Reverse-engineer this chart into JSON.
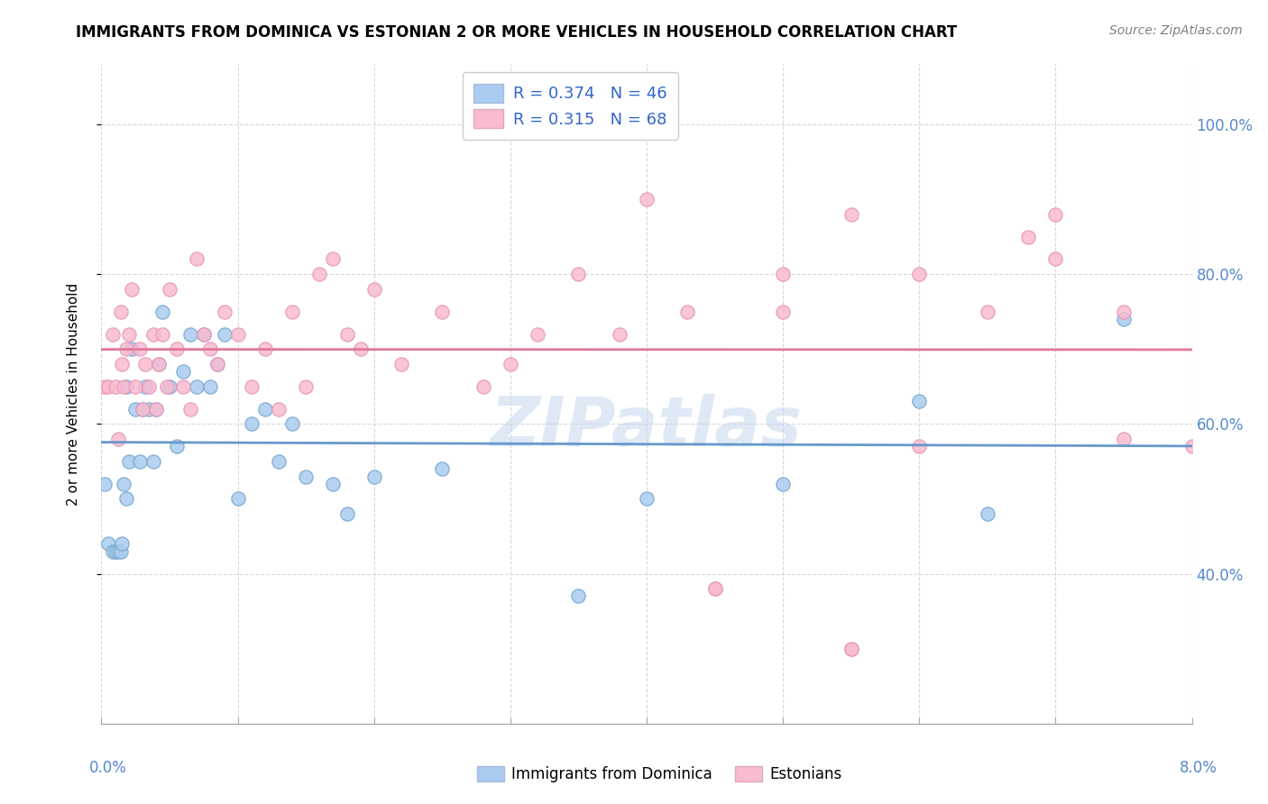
{
  "title": "IMMIGRANTS FROM DOMINICA VS ESTONIAN 2 OR MORE VEHICLES IN HOUSEHOLD CORRELATION CHART",
  "source": "Source: ZipAtlas.com",
  "ylabel": "2 or more Vehicles in Household",
  "xlim": [
    0.0,
    8.0
  ],
  "ylim": [
    20.0,
    108.0
  ],
  "yticks": [
    40.0,
    60.0,
    80.0,
    100.0
  ],
  "xtick_positions": [
    0.0,
    1.0,
    2.0,
    3.0,
    4.0,
    5.0,
    6.0,
    7.0,
    8.0
  ],
  "series1_label": "Immigrants from Dominica",
  "series1_R": "0.374",
  "series1_N": "46",
  "series1_color": "#aaccf0",
  "series1_edge_color": "#7aaad0",
  "series1_line_color": "#6699cc",
  "series2_label": "Estonians",
  "series2_R": "0.315",
  "series2_N": "68",
  "series2_color": "#f8bbd0",
  "series2_edge_color": "#e899b8",
  "series2_line_color": "#e07898",
  "watermark": "ZIPatlas",
  "background_color": "#ffffff",
  "grid_color": "#d8d8d8",
  "series1_x": [
    0.02,
    0.05,
    0.08,
    0.1,
    0.12,
    0.14,
    0.15,
    0.16,
    0.18,
    0.18,
    0.2,
    0.22,
    0.25,
    0.28,
    0.3,
    0.32,
    0.35,
    0.38,
    0.4,
    0.42,
    0.45,
    0.5,
    0.55,
    0.6,
    0.65,
    0.7,
    0.75,
    0.8,
    0.85,
    0.9,
    1.0,
    1.1,
    1.2,
    1.3,
    1.4,
    1.5,
    1.7,
    1.8,
    2.0,
    2.5,
    3.5,
    4.0,
    5.0,
    6.0,
    6.5,
    7.5
  ],
  "series1_y": [
    52.0,
    44.0,
    43.0,
    43.0,
    43.0,
    43.0,
    44.0,
    52.0,
    50.0,
    65.0,
    55.0,
    70.0,
    62.0,
    55.0,
    62.0,
    65.0,
    62.0,
    55.0,
    62.0,
    68.0,
    75.0,
    65.0,
    57.0,
    67.0,
    72.0,
    65.0,
    72.0,
    65.0,
    68.0,
    72.0,
    50.0,
    60.0,
    62.0,
    55.0,
    60.0,
    53.0,
    52.0,
    48.0,
    53.0,
    54.0,
    37.0,
    50.0,
    52.0,
    63.0,
    48.0,
    74.0
  ],
  "series2_x": [
    0.02,
    0.05,
    0.08,
    0.1,
    0.12,
    0.14,
    0.15,
    0.16,
    0.18,
    0.2,
    0.22,
    0.25,
    0.28,
    0.3,
    0.32,
    0.35,
    0.38,
    0.4,
    0.42,
    0.45,
    0.48,
    0.5,
    0.55,
    0.6,
    0.65,
    0.7,
    0.75,
    0.8,
    0.85,
    0.9,
    1.0,
    1.1,
    1.2,
    1.3,
    1.4,
    1.5,
    1.6,
    1.7,
    1.8,
    1.9,
    2.0,
    2.2,
    2.5,
    2.8,
    3.0,
    3.2,
    3.5,
    3.8,
    4.0,
    4.3,
    4.5,
    5.0,
    5.0,
    5.5,
    6.0,
    6.5,
    6.8,
    7.0,
    7.5,
    8.0,
    3.2,
    3.3,
    4.5,
    5.5,
    5.5,
    6.0,
    7.0,
    7.5
  ],
  "series2_y": [
    65.0,
    65.0,
    72.0,
    65.0,
    58.0,
    75.0,
    68.0,
    65.0,
    70.0,
    72.0,
    78.0,
    65.0,
    70.0,
    62.0,
    68.0,
    65.0,
    72.0,
    62.0,
    68.0,
    72.0,
    65.0,
    78.0,
    70.0,
    65.0,
    62.0,
    82.0,
    72.0,
    70.0,
    68.0,
    75.0,
    72.0,
    65.0,
    70.0,
    62.0,
    75.0,
    65.0,
    80.0,
    82.0,
    72.0,
    70.0,
    78.0,
    68.0,
    75.0,
    65.0,
    68.0,
    72.0,
    80.0,
    72.0,
    90.0,
    75.0,
    38.0,
    75.0,
    80.0,
    88.0,
    80.0,
    75.0,
    85.0,
    82.0,
    58.0,
    57.0,
    100.0,
    100.0,
    38.0,
    30.0,
    30.0,
    57.0,
    88.0,
    75.0
  ]
}
